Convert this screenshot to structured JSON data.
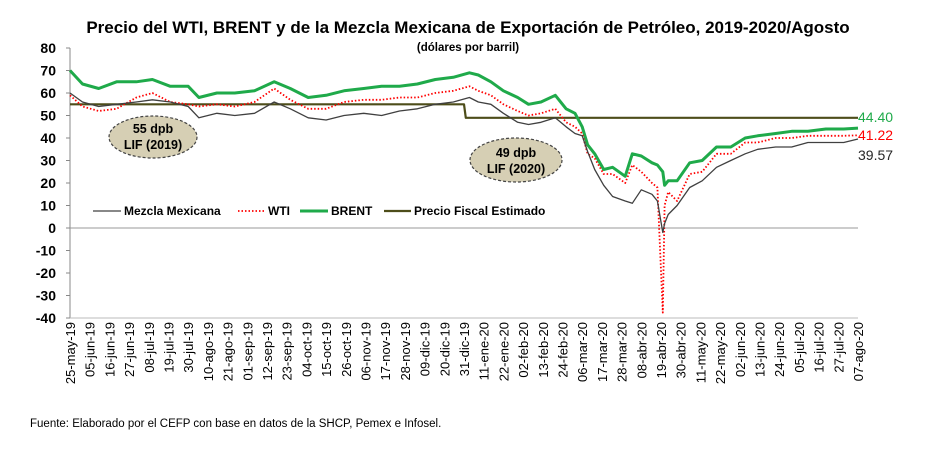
{
  "chart_data": {
    "type": "line",
    "title": "Precio del WTI, BRENT y de la Mezcla Mexicana de Exportación de Petróleo, 2019-2020/Agosto",
    "subtitle": "(dólares por barril)",
    "source": "Fuente: Elaborado por el CEFP con base en datos de la SHCP, Pemex e Infosel.",
    "ylim": [
      -40,
      80
    ],
    "yticks": [
      80,
      70,
      60,
      50,
      40,
      30,
      20,
      10,
      0,
      -10,
      -20,
      -30,
      -40
    ],
    "xlim": [
      "2019-05-25",
      "2020-08-07"
    ],
    "xticks": [
      "25-may-19",
      "05-jun-19",
      "16-jun-19",
      "27-jun-19",
      "08-jul-19",
      "19-jul-19",
      "30-jul-19",
      "10-ago-19",
      "21-ago-19",
      "01-sep-19",
      "12-sep-19",
      "23-sep-19",
      "04-oct-19",
      "15-oct-19",
      "26-oct-19",
      "06-nov-19",
      "17-nov-19",
      "28-nov-19",
      "09-dic-19",
      "20-dic-19",
      "31-dic-19",
      "11-ene-20",
      "22-ene-20",
      "02-feb-20",
      "13-feb-20",
      "24-feb-20",
      "06-mar-20",
      "17-mar-20",
      "28-mar-20",
      "08-abr-20",
      "19-abr-20",
      "30-abr-20",
      "11-may-20",
      "22-may-20",
      "02-jun-20",
      "13-jun-20",
      "24-jun-20",
      "05-jul-20",
      "16-jul-20",
      "27-jul-20",
      "07-ago-20"
    ],
    "grid": false,
    "legend_position": "bottom-left",
    "series": [
      {
        "name": "Mezcla Mexicana",
        "color": "#404040",
        "style": "solid",
        "x": [
          "2019-05-25",
          "2019-06-01",
          "2019-06-10",
          "2019-06-20",
          "2019-07-01",
          "2019-07-10",
          "2019-07-20",
          "2019-07-30",
          "2019-08-05",
          "2019-08-15",
          "2019-08-25",
          "2019-09-05",
          "2019-09-16",
          "2019-09-25",
          "2019-10-05",
          "2019-10-15",
          "2019-10-25",
          "2019-11-05",
          "2019-11-15",
          "2019-11-25",
          "2019-12-05",
          "2019-12-15",
          "2019-12-25",
          "2020-01-03",
          "2020-01-08",
          "2020-01-15",
          "2020-01-22",
          "2020-01-30",
          "2020-02-05",
          "2020-02-12",
          "2020-02-20",
          "2020-02-26",
          "2020-03-02",
          "2020-03-06",
          "2020-03-09",
          "2020-03-13",
          "2020-03-18",
          "2020-03-23",
          "2020-03-30",
          "2020-04-03",
          "2020-04-08",
          "2020-04-14",
          "2020-04-17",
          "2020-04-20",
          "2020-04-21",
          "2020-04-23",
          "2020-04-28",
          "2020-05-05",
          "2020-05-12",
          "2020-05-20",
          "2020-05-28",
          "2020-06-05",
          "2020-06-12",
          "2020-06-22",
          "2020-07-01",
          "2020-07-10",
          "2020-07-20",
          "2020-07-30",
          "2020-08-07"
        ],
        "values": [
          60,
          56,
          54,
          55,
          56,
          57,
          56,
          54,
          49,
          51,
          50,
          51,
          56,
          53,
          49,
          48,
          50,
          51,
          50,
          52,
          53,
          55,
          56,
          58,
          56,
          55,
          51,
          47,
          46,
          47,
          49,
          45,
          42,
          41,
          34,
          26,
          19,
          14,
          12,
          11,
          17,
          15,
          12,
          -2,
          2,
          6,
          10,
          18,
          21,
          27,
          30,
          33,
          35,
          36,
          36,
          38,
          38,
          38,
          39.57
        ]
      },
      {
        "name": "WTI",
        "color": "#ff0000",
        "style": "dotted",
        "x": [
          "2019-05-25",
          "2019-06-01",
          "2019-06-10",
          "2019-06-20",
          "2019-07-01",
          "2019-07-10",
          "2019-07-20",
          "2019-07-30",
          "2019-08-05",
          "2019-08-15",
          "2019-08-25",
          "2019-09-05",
          "2019-09-16",
          "2019-09-25",
          "2019-10-05",
          "2019-10-15",
          "2019-10-25",
          "2019-11-05",
          "2019-11-15",
          "2019-11-25",
          "2019-12-05",
          "2019-12-15",
          "2019-12-25",
          "2020-01-03",
          "2020-01-08",
          "2020-01-15",
          "2020-01-22",
          "2020-01-30",
          "2020-02-05",
          "2020-02-12",
          "2020-02-20",
          "2020-02-26",
          "2020-03-02",
          "2020-03-06",
          "2020-03-09",
          "2020-03-13",
          "2020-03-18",
          "2020-03-23",
          "2020-03-30",
          "2020-04-03",
          "2020-04-08",
          "2020-04-14",
          "2020-04-17",
          "2020-04-20",
          "2020-04-21",
          "2020-04-23",
          "2020-04-28",
          "2020-05-05",
          "2020-05-12",
          "2020-05-20",
          "2020-05-28",
          "2020-06-05",
          "2020-06-12",
          "2020-06-22",
          "2020-07-01",
          "2020-07-10",
          "2020-07-20",
          "2020-07-30",
          "2020-08-07"
        ],
        "values": [
          59,
          54,
          52,
          53,
          58,
          60,
          56,
          55,
          54,
          55,
          54,
          56,
          62,
          57,
          53,
          53,
          56,
          57,
          57,
          58,
          58,
          60,
          61,
          63,
          61,
          59,
          55,
          52,
          50,
          51,
          53,
          47,
          45,
          42,
          33,
          31,
          24,
          24,
          20,
          28,
          25,
          20,
          18,
          -37.6,
          10,
          16,
          12,
          24,
          25,
          33,
          33,
          38,
          38,
          40,
          40,
          41,
          41,
          41,
          41.22
        ]
      },
      {
        "name": "BRENT",
        "color": "#1faa4a",
        "style": "solid",
        "x": [
          "2019-05-25",
          "2019-06-01",
          "2019-06-10",
          "2019-06-20",
          "2019-07-01",
          "2019-07-10",
          "2019-07-20",
          "2019-07-30",
          "2019-08-05",
          "2019-08-15",
          "2019-08-25",
          "2019-09-05",
          "2019-09-16",
          "2019-09-25",
          "2019-10-05",
          "2019-10-15",
          "2019-10-25",
          "2019-11-05",
          "2019-11-15",
          "2019-11-25",
          "2019-12-05",
          "2019-12-15",
          "2019-12-25",
          "2020-01-03",
          "2020-01-08",
          "2020-01-15",
          "2020-01-22",
          "2020-01-30",
          "2020-02-05",
          "2020-02-12",
          "2020-02-20",
          "2020-02-26",
          "2020-03-02",
          "2020-03-06",
          "2020-03-09",
          "2020-03-13",
          "2020-03-18",
          "2020-03-23",
          "2020-03-30",
          "2020-04-03",
          "2020-04-08",
          "2020-04-14",
          "2020-04-17",
          "2020-04-20",
          "2020-04-21",
          "2020-04-23",
          "2020-04-28",
          "2020-05-05",
          "2020-05-12",
          "2020-05-20",
          "2020-05-28",
          "2020-06-05",
          "2020-06-12",
          "2020-06-22",
          "2020-07-01",
          "2020-07-10",
          "2020-07-20",
          "2020-07-30",
          "2020-08-07"
        ],
        "values": [
          70,
          64,
          62,
          65,
          65,
          66,
          63,
          63,
          58,
          60,
          60,
          61,
          65,
          62,
          58,
          59,
          61,
          62,
          63,
          63,
          64,
          66,
          67,
          69,
          68,
          65,
          61,
          58,
          55,
          56,
          59,
          53,
          51,
          45,
          37,
          33,
          26,
          27,
          23,
          33,
          32,
          29,
          28,
          25,
          19,
          21,
          21,
          29,
          30,
          36,
          36,
          40,
          41,
          42,
          43,
          43,
          44,
          44,
          44.4
        ]
      },
      {
        "name": "Precio Fiscal Estimado",
        "color": "#4d4d1a",
        "style": "solid",
        "x": [
          "2019-05-25",
          "2019-12-31",
          "2020-01-01",
          "2020-08-07"
        ],
        "values": [
          55,
          55,
          49,
          49
        ]
      }
    ],
    "annotations": [
      {
        "line1": "55 dpb",
        "line2": "LIF (2019)"
      },
      {
        "line1": "49 dpb",
        "line2": "LIF (2020)"
      }
    ],
    "end_labels": [
      {
        "text": "44.40",
        "color": "#1faa4a"
      },
      {
        "text": "41.22",
        "color": "#ff0000"
      },
      {
        "text": "39.57",
        "color": "#262626"
      }
    ]
  }
}
